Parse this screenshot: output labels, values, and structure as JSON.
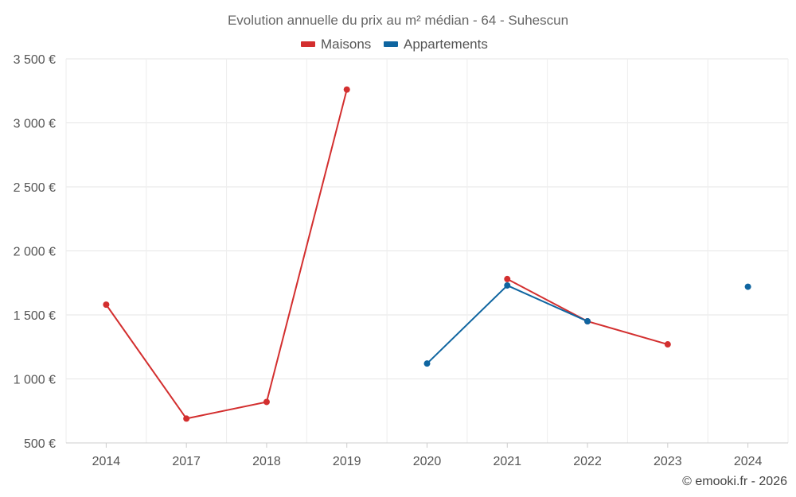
{
  "chart_data": {
    "type": "line",
    "title": "Evolution annuelle du prix au m² médian - 64 - Suhescun",
    "categories": [
      "2014",
      "2017",
      "2018",
      "2019",
      "2020",
      "2021",
      "2022",
      "2023",
      "2024"
    ],
    "yticks": [
      500,
      1000,
      1500,
      2000,
      2500,
      3000,
      3500
    ],
    "ytick_labels": [
      "500 €",
      "1 000 €",
      "1 500 €",
      "2 000 €",
      "2 500 €",
      "3 000 €",
      "3 500 €"
    ],
    "ylim": [
      500,
      3500
    ],
    "xlabel": "",
    "ylabel": "",
    "grid": true,
    "legend_position": "top-center",
    "series": [
      {
        "name": "Maisons",
        "color": "#d32f2f",
        "values": [
          1580,
          690,
          820,
          3260,
          null,
          1780,
          1450,
          1270,
          null
        ]
      },
      {
        "name": "Appartements",
        "color": "#0f65a0",
        "values": [
          null,
          null,
          null,
          null,
          1120,
          1730,
          1450,
          null,
          1720
        ]
      }
    ]
  },
  "credit": "© emooki.fr - 2026"
}
